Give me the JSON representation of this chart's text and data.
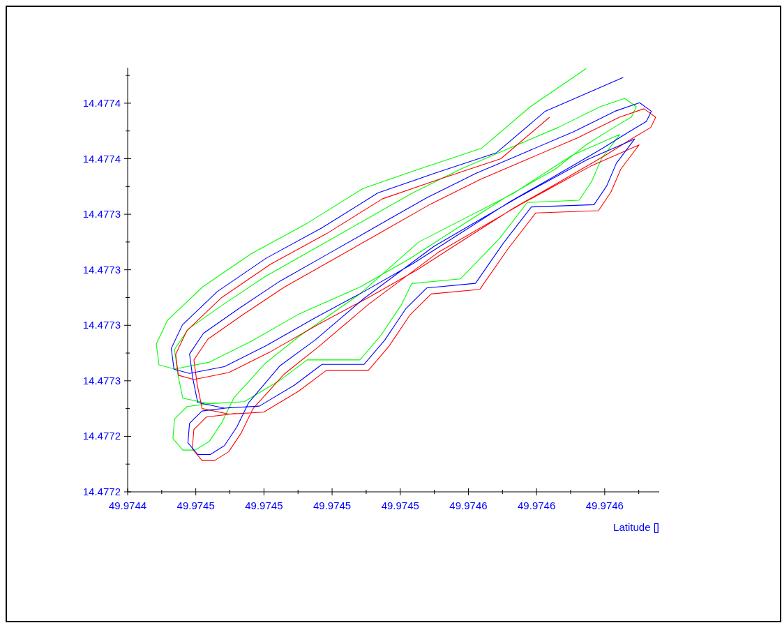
{
  "chart_data": {
    "type": "line",
    "xlabel": "Latitude []",
    "xlim": [
      49.97444,
      49.974635
    ],
    "ylim": [
      14.47721,
      14.477401
    ],
    "xticks": [
      {
        "value": 49.97444,
        "label": "49.9744"
      },
      {
        "value": 49.9744525,
        "label": null
      },
      {
        "value": 49.974465,
        "label": "49.9745"
      },
      {
        "value": 49.9744775,
        "label": null
      },
      {
        "value": 49.97449,
        "label": "49.9745"
      },
      {
        "value": 49.9745025,
        "label": null
      },
      {
        "value": 49.974515,
        "label": "49.9745"
      },
      {
        "value": 49.9745275,
        "label": null
      },
      {
        "value": 49.97454,
        "label": "49.9745"
      },
      {
        "value": 49.9745525,
        "label": null
      },
      {
        "value": 49.974565,
        "label": "49.9746"
      },
      {
        "value": 49.9745775,
        "label": null
      },
      {
        "value": 49.97459,
        "label": "49.9746"
      },
      {
        "value": 49.9746025,
        "label": null
      },
      {
        "value": 49.974615,
        "label": "49.9746"
      },
      {
        "value": 49.9746275,
        "label": null
      }
    ],
    "yticks": [
      {
        "value": 14.47721,
        "label": "14.4772"
      },
      {
        "value": 14.4772225,
        "label": null
      },
      {
        "value": 14.477235,
        "label": "14.4772"
      },
      {
        "value": 14.4772475,
        "label": null
      },
      {
        "value": 14.47726,
        "label": "14.4773"
      },
      {
        "value": 14.4772725,
        "label": null
      },
      {
        "value": 14.477285,
        "label": "14.4773"
      },
      {
        "value": 14.4772975,
        "label": null
      },
      {
        "value": 14.47731,
        "label": "14.4773"
      },
      {
        "value": 14.4773225,
        "label": null
      },
      {
        "value": 14.477335,
        "label": "14.4773"
      },
      {
        "value": 14.4773475,
        "label": null
      },
      {
        "value": 14.47736,
        "label": "14.4774"
      },
      {
        "value": 14.4773725,
        "label": null
      },
      {
        "value": 14.477385,
        "label": "14.4774"
      },
      {
        "value": 14.4773975,
        "label": null
      }
    ],
    "grid": false,
    "series": [
      {
        "color": "#00ff00",
        "x": [
          49.9746082,
          49.9745877,
          49.9745698,
          49.9745468,
          49.9745263,
          49.9745058,
          49.9744853,
          49.9744674,
          49.9744546,
          49.9744505,
          49.9744515,
          49.9744572,
          49.97447,
          49.9744853,
          49.9745032,
          49.9745252,
          49.9745431,
          49.974561,
          49.9745789,
          49.9745968,
          49.9746082,
          49.9746184,
          49.9746248,
          49.9746266,
          49.9746223,
          49.9746133,
          49.974598,
          49.97458,
          49.9745621,
          49.9745442,
          49.9745263,
          49.9745084,
          49.9744904,
          49.9744751,
          49.9744623,
          49.9744572,
          49.9744584,
          49.9744602,
          49.97447,
          49.9744828,
          49.9744956,
          49.9745058,
          49.9745252,
          49.9745328,
          49.9745405,
          49.9745442,
          49.9745621,
          49.9745764,
          49.9745866,
          49.9746056,
          49.9746102,
          49.9746138,
          49.9746205,
          49.9746031,
          49.9745815,
          49.9745468,
          49.9745252,
          49.9745032,
          49.9744904,
          49.9744789,
          49.9744746,
          49.97447,
          49.9744648,
          49.9744602,
          49.9744566,
          49.9744572,
          49.9744618,
          49.9744725
        ],
        "values": [
          14.4774006,
          14.4773834,
          14.4773647,
          14.4773553,
          14.4773466,
          14.4773309,
          14.4773172,
          14.4773022,
          14.4772872,
          14.4772766,
          14.4772672,
          14.4772653,
          14.4772684,
          14.4772778,
          14.4772903,
          14.4773022,
          14.4773147,
          14.4773288,
          14.4773428,
          14.4773553,
          14.4773663,
          14.4773741,
          14.4773788,
          14.4773834,
          14.4773872,
          14.4773834,
          14.4773741,
          14.4773647,
          14.4773553,
          14.4773444,
          14.4773319,
          14.4773194,
          14.4773069,
          14.4772944,
          14.4772834,
          14.4772741,
          14.4772631,
          14.4772522,
          14.4772497,
          14.4772506,
          14.47726,
          14.4772694,
          14.4772694,
          14.4772803,
          14.4772944,
          14.4773038,
          14.4773059,
          14.4773241,
          14.4773403,
          14.4773413,
          14.4773497,
          14.47736,
          14.4773709,
          14.4773616,
          14.4773444,
          14.4773225,
          14.4772991,
          14.4772803,
          14.4772678,
          14.4772522,
          14.4772413,
          14.4772328,
          14.4772288,
          14.4772288,
          14.4772341,
          14.4772428,
          14.4772484,
          14.47725
        ]
      },
      {
        "color": "#ff0000",
        "x": [
          49.9745948,
          49.9745769,
          49.9745539,
          49.9745334,
          49.9745129,
          49.9744924,
          49.9744745,
          49.9744617,
          49.9744576,
          49.9744586,
          49.9744643,
          49.9744771,
          49.9744924,
          49.9745103,
          49.9745283,
          49.9745462,
          49.9745641,
          49.974582,
          49.9745999,
          49.9746153,
          49.9746255,
          49.9746319,
          49.9746337,
          49.9746294,
          49.9746204,
          49.9746051,
          49.9745871,
          49.9745692,
          49.9745513,
          49.9745334,
          49.9745155,
          49.9744975,
          49.9744822,
          49.9744694,
          49.9744643,
          49.9744655,
          49.9744673,
          49.9744771,
          49.9744899,
          49.9745027,
          49.9745129,
          49.9745283,
          49.9745359,
          49.9745436,
          49.9745513,
          49.9745692,
          49.9745795,
          49.9745897,
          49.9746127,
          49.9746173,
          49.9746209,
          49.9746276,
          49.9746102,
          49.9745846,
          49.9745539,
          49.9745283,
          49.9745103,
          49.9744975,
          49.974486,
          49.9744817,
          49.9744771,
          49.9744719,
          49.9744673,
          49.9744637,
          49.9744643,
          49.9744689,
          49.9744796
        ],
        "values": [
          14.4773787,
          14.47736,
          14.4773506,
          14.4773419,
          14.4773262,
          14.4773125,
          14.4772975,
          14.4772825,
          14.4772719,
          14.4772625,
          14.4772606,
          14.4772637,
          14.4772731,
          14.4772856,
          14.4772975,
          14.47731,
          14.4773241,
          14.4773381,
          14.4773506,
          14.4773616,
          14.4773694,
          14.4773741,
          14.4773787,
          14.4773825,
          14.4773787,
          14.4773694,
          14.47736,
          14.4773506,
          14.4773397,
          14.4773272,
          14.4773147,
          14.4773022,
          14.4772897,
          14.4772787,
          14.4772694,
          14.4772584,
          14.4772475,
          14.477245,
          14.4772459,
          14.4772553,
          14.4772647,
          14.4772647,
          14.4772756,
          14.4772897,
          14.4772991,
          14.4773012,
          14.4773194,
          14.4773356,
          14.4773366,
          14.477345,
          14.4773553,
          14.4773662,
          14.4773569,
          14.4773397,
          14.4773178,
          14.4772944,
          14.4772756,
          14.4772631,
          14.4772475,
          14.4772366,
          14.4772281,
          14.4772241,
          14.4772241,
          14.4772294,
          14.4772381,
          14.4772437,
          14.4772453
        ]
      },
      {
        "color": "#0000ff",
        "x": [
          49.9746218,
          49.9745932,
          49.9745753,
          49.9745523,
          49.9745318,
          49.9745113,
          49.9744908,
          49.9744729,
          49.9744601,
          49.974456,
          49.974457,
          49.9744627,
          49.9744755,
          49.9744908,
          49.9745087,
          49.9745267,
          49.9745446,
          49.9745625,
          49.9745804,
          49.9745983,
          49.9746137,
          49.9746239,
          49.9746303,
          49.9746321,
          49.9746278,
          49.9746188,
          49.9746035,
          49.9745855,
          49.9745676,
          49.9745497,
          49.9745318,
          49.9745139,
          49.9744959,
          49.9744806,
          49.9744678,
          49.9744627,
          49.9744639,
          49.9744657,
          49.9744755,
          49.9744883,
          49.9745011,
          49.9745113,
          49.9745267,
          49.9745343,
          49.974542,
          49.9745497,
          49.9745676,
          49.9745779,
          49.9745881,
          49.9746111,
          49.9746157,
          49.9746193,
          49.974626,
          49.9746086,
          49.974583,
          49.9745523,
          49.9745267,
          49.9745087,
          49.9744959,
          49.9744844,
          49.9744801,
          49.9744755,
          49.9744703,
          49.9744657,
          49.9744621,
          49.9744627,
          49.9744673,
          49.974478
        ],
        "values": [
          14.4773966,
          14.4773814,
          14.4773627,
          14.4773533,
          14.4773446,
          14.4773289,
          14.4773152,
          14.4773002,
          14.4772852,
          14.4772746,
          14.4772652,
          14.4772633,
          14.4772664,
          14.4772758,
          14.4772883,
          14.4773002,
          14.4773127,
          14.4773268,
          14.4773408,
          14.4773533,
          14.4773643,
          14.4773721,
          14.4773768,
          14.4773814,
          14.4773852,
          14.4773814,
          14.4773721,
          14.4773627,
          14.4773533,
          14.4773424,
          14.4773299,
          14.4773174,
          14.4773049,
          14.4772924,
          14.4772814,
          14.4772721,
          14.4772611,
          14.4772502,
          14.4772477,
          14.4772486,
          14.477258,
          14.4772674,
          14.4772674,
          14.4772783,
          14.4772924,
          14.4773018,
          14.4773039,
          14.4773221,
          14.4773383,
          14.4773393,
          14.4773477,
          14.477358,
          14.4773689,
          14.4773596,
          14.4773424,
          14.4773205,
          14.4772971,
          14.4772783,
          14.4772668,
          14.4772502,
          14.4772393,
          14.4772308,
          14.4772268,
          14.4772268,
          14.4772321,
          14.4772408,
          14.4772464,
          14.477248
        ]
      }
    ]
  }
}
